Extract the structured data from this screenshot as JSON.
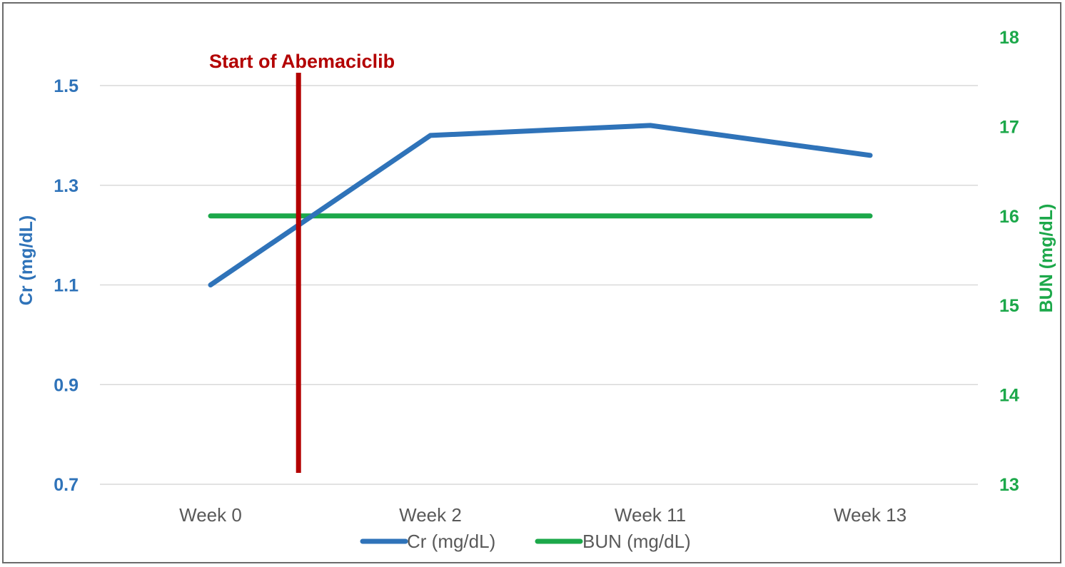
{
  "chart_data": {
    "type": "line",
    "categories": [
      "Week 0",
      "Week 2",
      "Week 11",
      "Week 13"
    ],
    "series": [
      {
        "name": "Cr (mg/dL)",
        "axis": "left",
        "color": "#2f73b9",
        "values": [
          1.1,
          1.4,
          1.42,
          1.36
        ]
      },
      {
        "name": "BUN (mg/dL)",
        "axis": "right",
        "color": "#1ca84a",
        "values": [
          16,
          16,
          16,
          16
        ]
      }
    ],
    "y_left": {
      "label": "Cr (mg/dL)",
      "range": [
        0.7,
        1.5
      ],
      "ticks": [
        "0.7",
        "0.9",
        "1.1",
        "1.3",
        "1.5"
      ],
      "color": "#2f73b9"
    },
    "y_right": {
      "label": "BUN (mg/dL)",
      "range": [
        13,
        18
      ],
      "ticks": [
        "13",
        "14",
        "15",
        "16",
        "17",
        "18"
      ],
      "color": "#1ca84a"
    },
    "grid": true,
    "legend_position": "bottom",
    "annotation": {
      "text": "Start of Abemaciclib",
      "x_category_position": 0.4,
      "color": "#b30000"
    }
  }
}
